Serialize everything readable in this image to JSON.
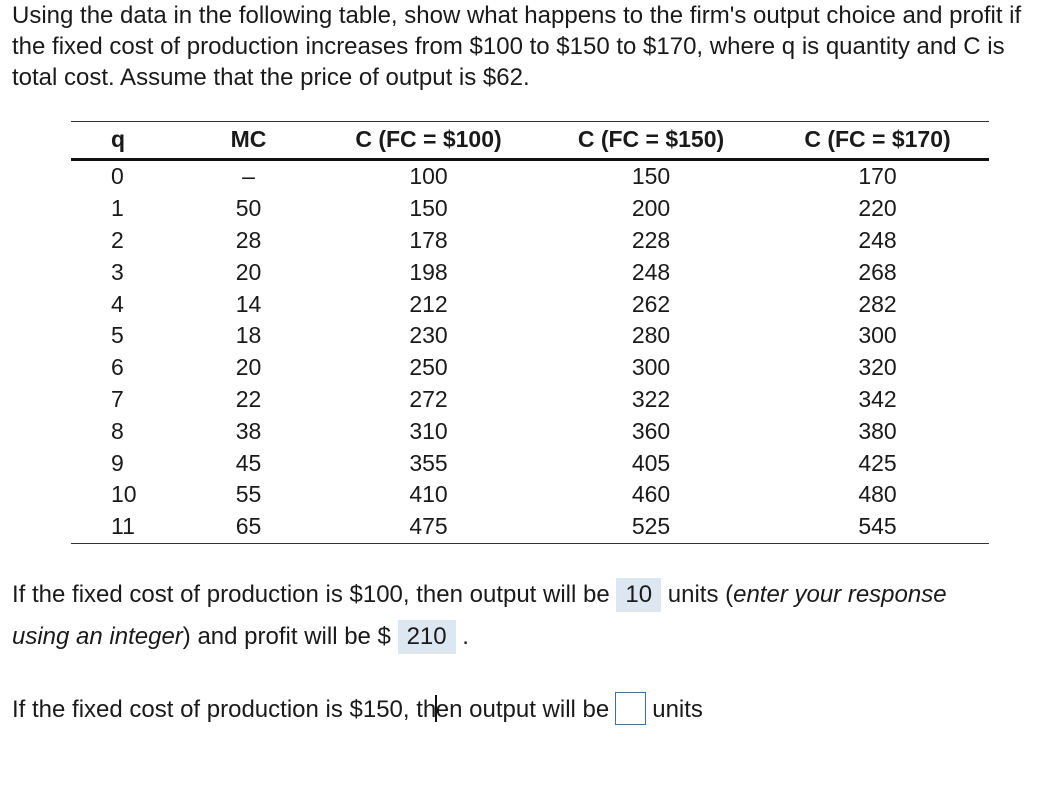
{
  "question": "Using the data in the following table, show what happens to the firm's output choice and profit if the fixed cost of production increases from $100 to $150 to $170, where q is quantity and C is total cost. Assume that the price of output is $62.",
  "table": {
    "headers": [
      "q",
      "MC",
      "C (FC = $100)",
      "C (FC = $150)",
      "C (FC = $170)"
    ],
    "rows": [
      [
        "0",
        "–",
        "100",
        "150",
        "170"
      ],
      [
        "1",
        "50",
        "150",
        "200",
        "220"
      ],
      [
        "2",
        "28",
        "178",
        "228",
        "248"
      ],
      [
        "3",
        "20",
        "198",
        "248",
        "268"
      ],
      [
        "4",
        "14",
        "212",
        "262",
        "282"
      ],
      [
        "5",
        "18",
        "230",
        "280",
        "300"
      ],
      [
        "6",
        "20",
        "250",
        "300",
        "320"
      ],
      [
        "7",
        "22",
        "272",
        "322",
        "342"
      ],
      [
        "8",
        "38",
        "310",
        "360",
        "380"
      ],
      [
        "9",
        "45",
        "355",
        "405",
        "425"
      ],
      [
        "10",
        "55",
        "410",
        "460",
        "480"
      ],
      [
        "11",
        "65",
        "475",
        "525",
        "545"
      ]
    ]
  },
  "part1": {
    "prefix": "If the fixed cost of production is $100, then output will be",
    "output_answer": "10",
    "mid": "units (",
    "italic_hint": "enter your response",
    "italic_hint2": "using an integer",
    "mid2": ") and profit will be $",
    "profit_answer": "210",
    "end": "."
  },
  "part2": {
    "prefix_a": "If the fixed cost of production is $150, th",
    "prefix_b": "en output will be",
    "input_value": "",
    "suffix": "units"
  }
}
